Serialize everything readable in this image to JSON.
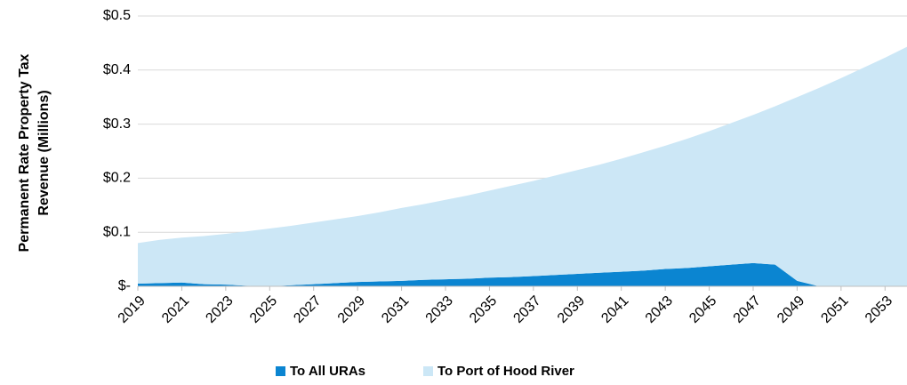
{
  "chart_data": {
    "type": "stacked_area",
    "ylabel": [
      "Permanent Rate Property Tax",
      "Revenue (Millions)"
    ],
    "x": [
      2019,
      2020,
      2021,
      2022,
      2023,
      2024,
      2025,
      2026,
      2027,
      2028,
      2029,
      2030,
      2031,
      2032,
      2033,
      2034,
      2035,
      2036,
      2037,
      2038,
      2039,
      2040,
      2041,
      2042,
      2043,
      2044,
      2045,
      2046,
      2047,
      2048,
      2049,
      2050,
      2051,
      2052,
      2053,
      2054
    ],
    "xlim": [
      2019,
      2054
    ],
    "xticks": [
      2019,
      2021,
      2023,
      2025,
      2027,
      2029,
      2031,
      2033,
      2035,
      2037,
      2039,
      2041,
      2043,
      2045,
      2047,
      2049,
      2051,
      2053
    ],
    "ylim": [
      0,
      0.5
    ],
    "yticks": [
      {
        "value": 0,
        "label": "$-"
      },
      {
        "value": 0.1,
        "label": "$0.1"
      },
      {
        "value": 0.2,
        "label": "$0.2"
      },
      {
        "value": 0.3,
        "label": "$0.3"
      },
      {
        "value": 0.4,
        "label": "$0.4"
      },
      {
        "value": 0.5,
        "label": "$0.5"
      }
    ],
    "grid": true,
    "legend": "bottom",
    "series": [
      {
        "name": "To All URAs",
        "color": "#0b85d1",
        "values": [
          0.005,
          0.006,
          0.007,
          0.004,
          0.003,
          0.001,
          0,
          0.002,
          0.004,
          0.006,
          0.008,
          0.009,
          0.01,
          0.012,
          0.013,
          0.014,
          0.016,
          0.017,
          0.019,
          0.021,
          0.023,
          0.025,
          0.027,
          0.029,
          0.032,
          0.034,
          0.037,
          0.04,
          0.043,
          0.04,
          0.01,
          0,
          0,
          0,
          0,
          0
        ]
      },
      {
        "name": "To Port of Hood River",
        "color": "#cce7f6",
        "values": [
          0.075,
          0.08,
          0.083,
          0.089,
          0.094,
          0.101,
          0.107,
          0.11,
          0.114,
          0.118,
          0.122,
          0.128,
          0.135,
          0.14,
          0.147,
          0.154,
          0.161,
          0.169,
          0.176,
          0.184,
          0.192,
          0.2,
          0.209,
          0.219,
          0.228,
          0.239,
          0.25,
          0.262,
          0.274,
          0.293,
          0.34,
          0.367,
          0.385,
          0.404,
          0.423,
          0.443
        ]
      }
    ]
  }
}
